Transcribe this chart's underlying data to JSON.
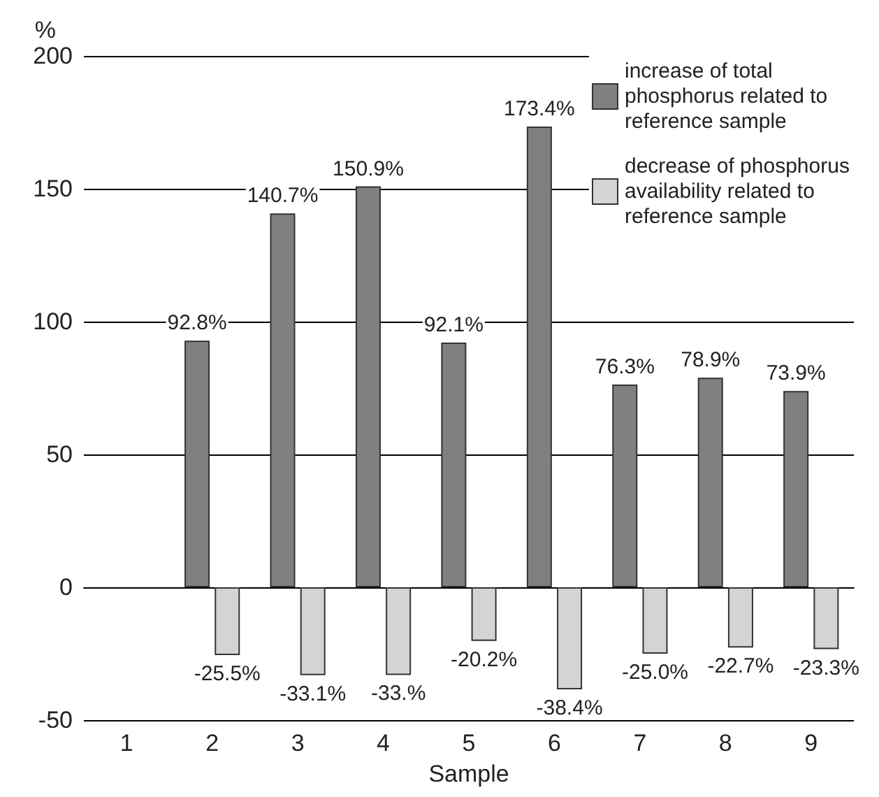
{
  "chart_data": {
    "type": "bar",
    "xlabel": "Sample",
    "ylabel": "%",
    "categories": [
      "1",
      "2",
      "3",
      "4",
      "5",
      "6",
      "7",
      "8",
      "9"
    ],
    "series": [
      {
        "name": "increase of total phosphorus related to reference sample",
        "color": "#808080",
        "values": [
          null,
          92.8,
          140.7,
          150.9,
          92.1,
          173.4,
          76.3,
          78.9,
          73.9
        ],
        "value_labels": [
          null,
          "92.8%",
          "140.7%",
          "150.9%",
          "92.1%",
          "173.4%",
          "76.3%",
          "78.9%",
          "73.9%"
        ]
      },
      {
        "name": "decrease of phosphorus availability related to reference sample",
        "color": "#d4d4d4",
        "values": [
          null,
          -25.5,
          -33.1,
          -33,
          -20.2,
          -38.4,
          -25.0,
          -22.7,
          -23.3
        ],
        "value_labels": [
          null,
          "-25.5%",
          "-33.1%",
          "-33.%",
          "-20.2%",
          "-38.4%",
          "-25.0%",
          "-22.7%",
          "-23.3%"
        ]
      }
    ],
    "ylim": [
      -50,
      200
    ],
    "yticks": [
      -50,
      0,
      50,
      100,
      150,
      200
    ],
    "grid": "y",
    "legend": "top right"
  }
}
